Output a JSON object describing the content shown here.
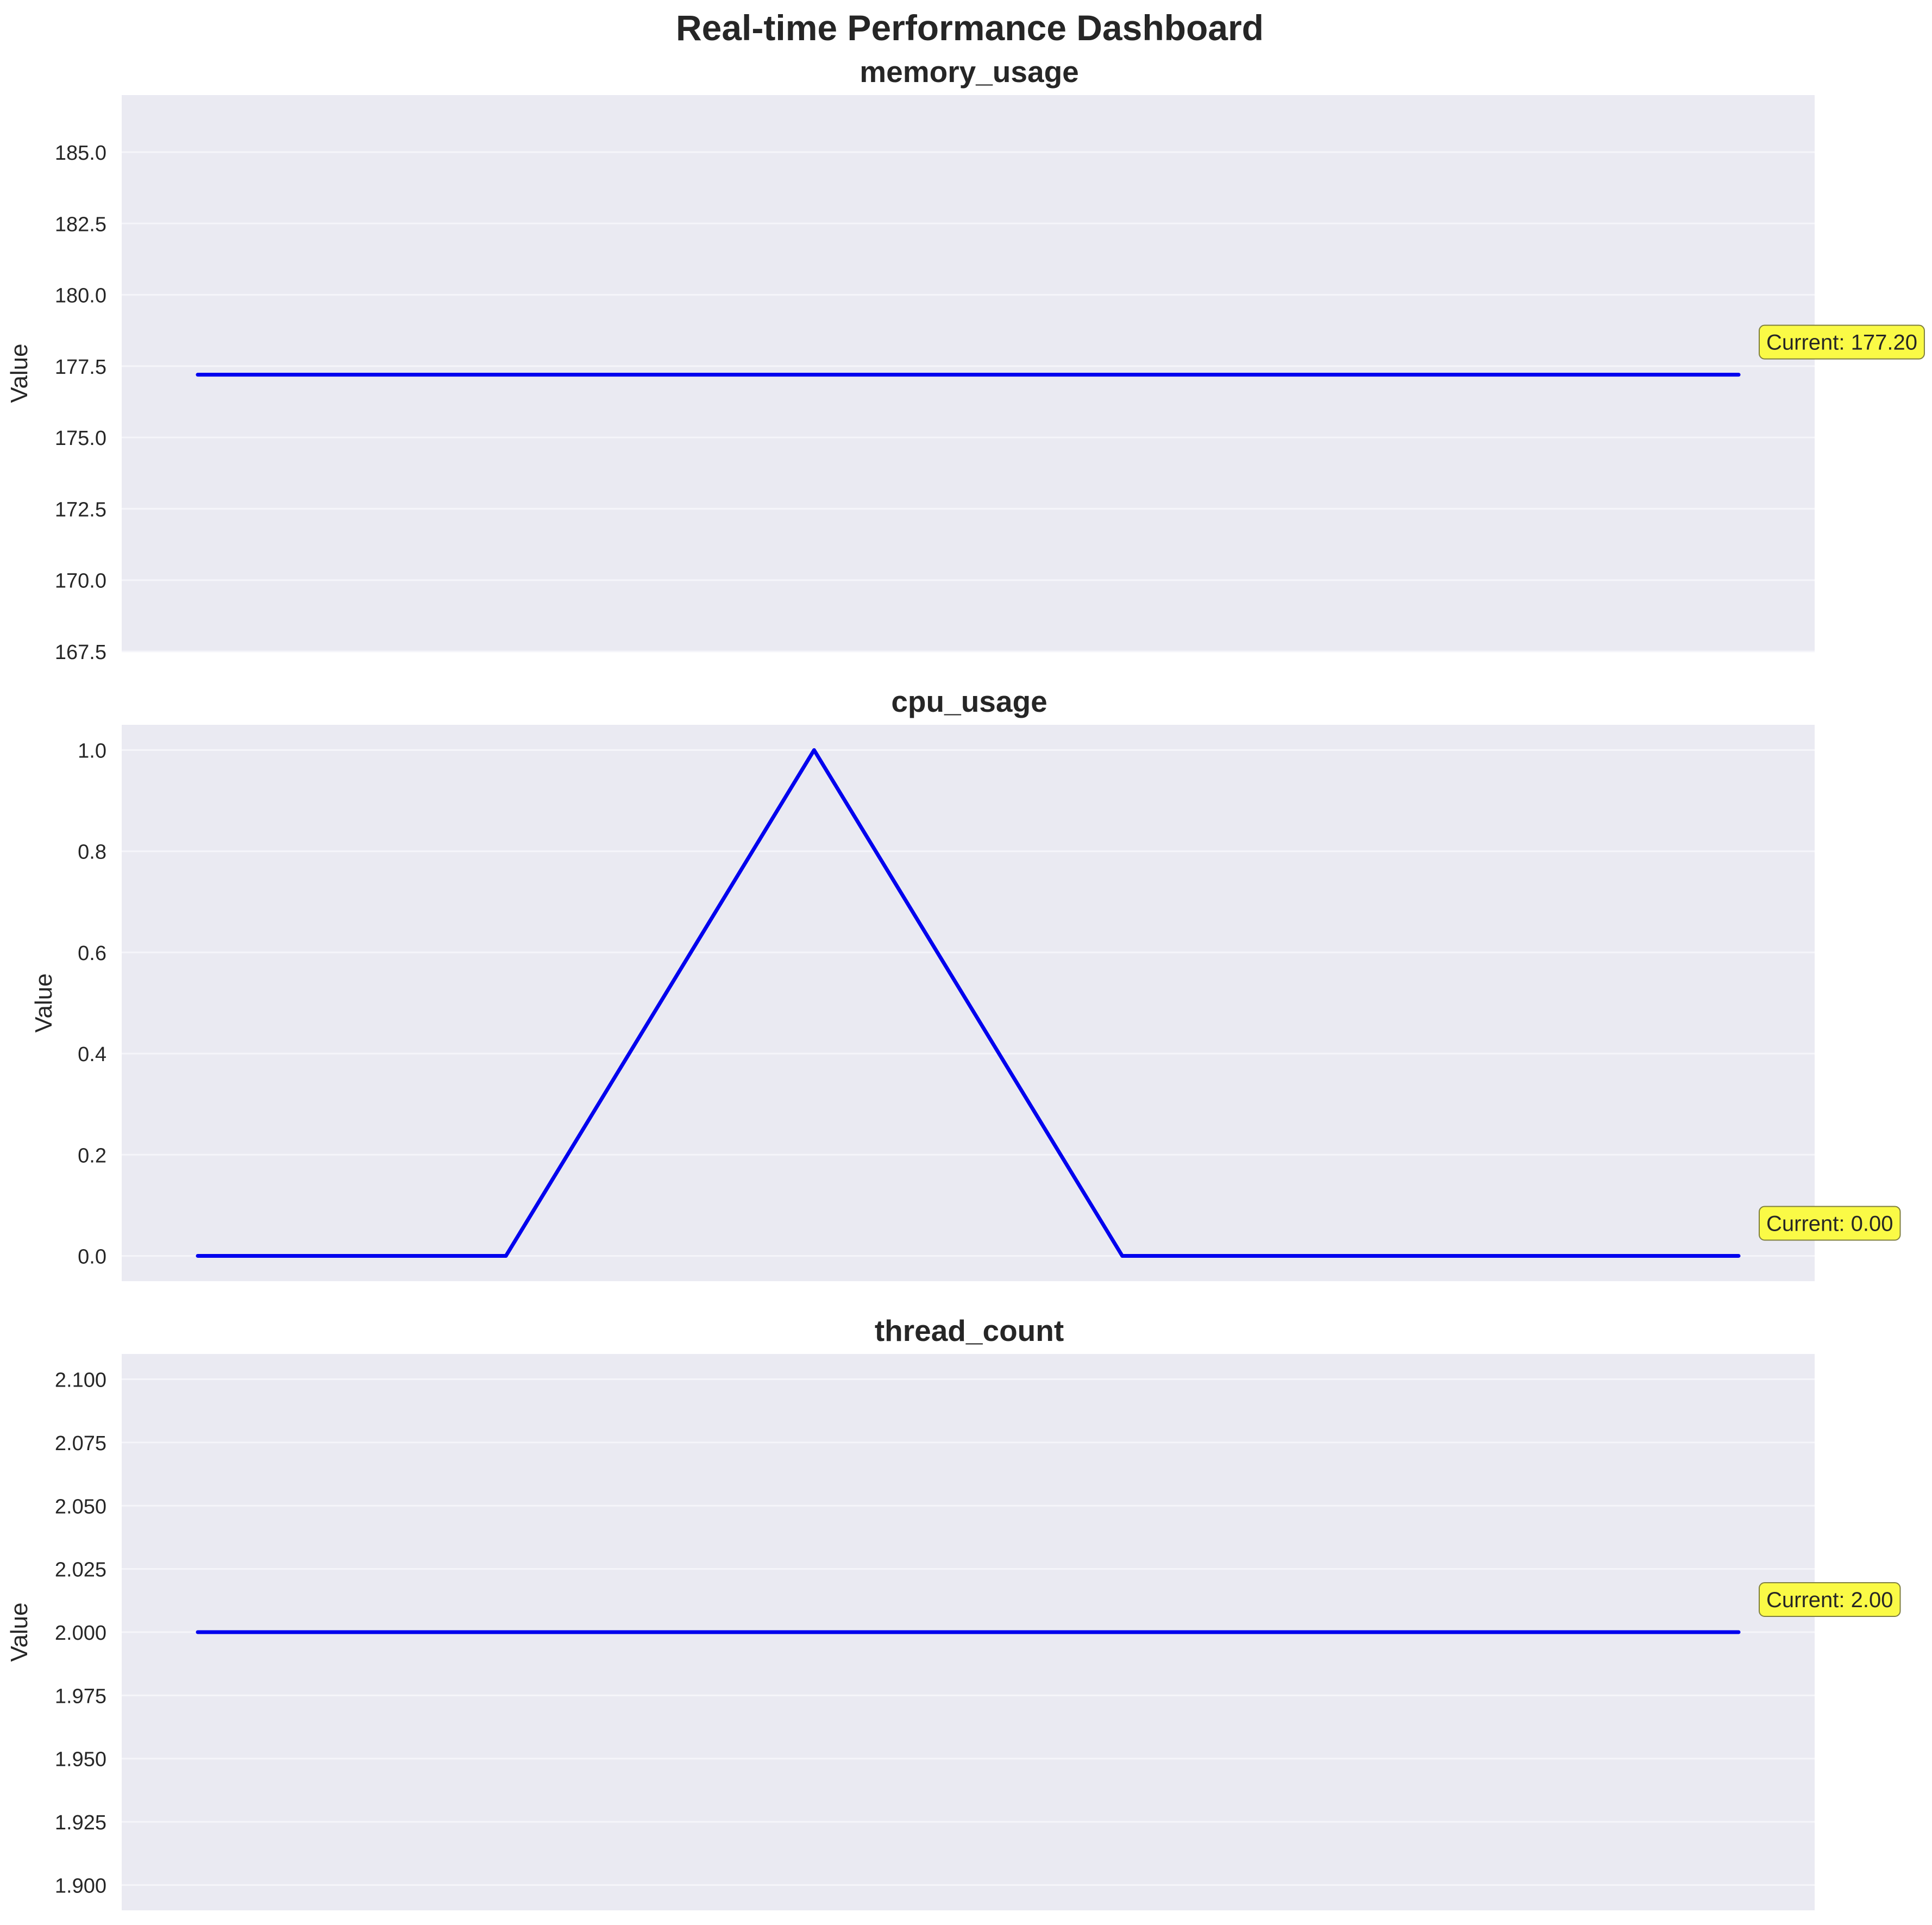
{
  "title": "Real-time Performance Dashboard",
  "colors": {
    "plot_background": "#eaeaf2",
    "grid": "#f5f5fa",
    "line": "#0000ee",
    "annotation_fill": "#fafa46",
    "annotation_border": "#7f7f3f",
    "text": "#262626"
  },
  "chart_data": [
    {
      "type": "line",
      "title": "memory_usage",
      "ylabel": "Value",
      "xlabel": "",
      "ylim": [
        167.5,
        187.0
      ],
      "yticks": [
        "167.5",
        "170.0",
        "172.5",
        "175.0",
        "177.5",
        "180.0",
        "182.5",
        "185.0"
      ],
      "grid": true,
      "x": [
        0,
        1,
        2,
        3,
        4,
        5
      ],
      "series": [
        {
          "values": [
            177.2,
            177.2,
            177.2,
            177.2,
            177.2,
            177.2
          ]
        }
      ],
      "annotation": "Current: 177.20"
    },
    {
      "type": "line",
      "title": "cpu_usage",
      "ylabel": "Value",
      "xlabel": "",
      "ylim": [
        -0.05,
        1.05
      ],
      "yticks": [
        "0.0",
        "0.2",
        "0.4",
        "0.6",
        "0.8",
        "1.0"
      ],
      "grid": true,
      "x": [
        0,
        1,
        2,
        3,
        4,
        5
      ],
      "series": [
        {
          "values": [
            0.0,
            0.0,
            1.0,
            0.0,
            0.0,
            0.0
          ]
        }
      ],
      "annotation": "Current: 0.00"
    },
    {
      "type": "line",
      "title": "thread_count",
      "ylabel": "Value",
      "xlabel": "",
      "ylim": [
        1.89,
        2.11
      ],
      "yticks": [
        "1.900",
        "1.925",
        "1.950",
        "1.975",
        "2.000",
        "2.025",
        "2.050",
        "2.075",
        "2.100"
      ],
      "grid": true,
      "x": [
        0,
        1,
        2,
        3,
        4,
        5
      ],
      "series": [
        {
          "values": [
            2.0,
            2.0,
            2.0,
            2.0,
            2.0,
            2.0
          ]
        }
      ],
      "annotation": "Current: 2.00"
    }
  ]
}
